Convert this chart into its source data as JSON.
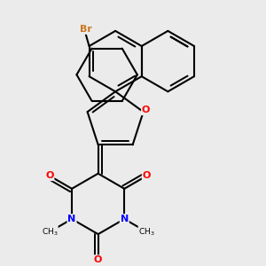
{
  "background_color": "#ebebeb",
  "bond_color": "#000000",
  "bond_width": 1.5,
  "atom_colors": {
    "Br": "#cc7722",
    "O": "#ff0000",
    "N": "#0000ff",
    "C": "#000000"
  },
  "figsize": [
    3.0,
    3.0
  ],
  "dpi": 100
}
